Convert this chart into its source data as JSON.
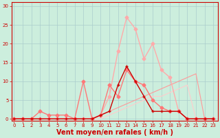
{
  "bg_color": "#cceedd",
  "grid_color": "#aacccc",
  "xlabel": "Vent moyen/en rafales ( km/h )",
  "xlabel_color": "#cc0000",
  "xlabel_fontsize": 7,
  "xticks": [
    0,
    1,
    2,
    3,
    4,
    5,
    6,
    7,
    8,
    9,
    10,
    11,
    12,
    13,
    14,
    15,
    16,
    17,
    18,
    19,
    20,
    21,
    22,
    23
  ],
  "yticks": [
    0,
    5,
    10,
    15,
    20,
    25,
    30
  ],
  "ylim": [
    -0.5,
    31
  ],
  "xlim": [
    -0.3,
    23.5
  ],
  "tick_color": "#cc0000",
  "tick_fontsize": 5.0,
  "line_light_pink_x": [
    0,
    1,
    2,
    3,
    4,
    5,
    6,
    7,
    8,
    9,
    10,
    11,
    12,
    13,
    14,
    15,
    16,
    17,
    18,
    19,
    20,
    21,
    22,
    23
  ],
  "line_light_pink_y": [
    0,
    0,
    0,
    0,
    0,
    0,
    0,
    0,
    0,
    0,
    1,
    6,
    18,
    27,
    24,
    16,
    20,
    13,
    11,
    2,
    0,
    0,
    0,
    0
  ],
  "line_light_pink_color": "#ffaaaa",
  "line_light_pink_lw": 1.0,
  "line_light_pink_marker": "D",
  "line_light_pink_ms": 2.5,
  "line_med_pink_x": [
    0,
    1,
    2,
    3,
    4,
    5,
    6,
    7,
    8,
    9,
    10,
    11,
    12,
    13,
    14,
    15,
    16,
    17,
    18,
    19,
    20,
    21,
    22,
    23
  ],
  "line_med_pink_y": [
    0,
    0,
    0,
    2,
    1,
    1,
    1,
    0,
    10,
    0,
    1,
    9,
    6,
    13,
    10,
    9,
    5,
    3,
    2,
    2,
    0,
    0,
    0,
    0
  ],
  "line_med_pink_color": "#ff7777",
  "line_med_pink_lw": 1.0,
  "line_med_pink_marker": "D",
  "line_med_pink_ms": 2.5,
  "line_dark_red_x": [
    0,
    1,
    2,
    3,
    4,
    5,
    6,
    7,
    8,
    9,
    10,
    11,
    12,
    13,
    14,
    15,
    16,
    17,
    18,
    19,
    20,
    21,
    22,
    23
  ],
  "line_dark_red_y": [
    0,
    0,
    0,
    0,
    0,
    0,
    0,
    0,
    0,
    0,
    1,
    2,
    9,
    14,
    10,
    6,
    2,
    2,
    2,
    2,
    0,
    0,
    0,
    0
  ],
  "line_dark_red_color": "#cc0000",
  "line_dark_red_lw": 1.0,
  "line_dark_red_marker": "+",
  "line_dark_red_ms": 3.5,
  "line_slope1_x": [
    0,
    1,
    2,
    3,
    4,
    5,
    6,
    7,
    8,
    9,
    10,
    11,
    12,
    13,
    14,
    15,
    16,
    17,
    18,
    19,
    20,
    21,
    22,
    23
  ],
  "line_slope1_y": [
    0,
    0,
    0,
    0,
    0,
    0,
    0,
    0,
    0,
    0,
    1,
    2,
    3,
    4,
    5,
    6,
    7,
    8,
    9,
    10,
    11,
    12,
    0,
    0
  ],
  "line_slope1_color": "#ff9999",
  "line_slope1_lw": 0.8,
  "line_slope2_x": [
    0,
    1,
    2,
    3,
    4,
    5,
    6,
    7,
    8,
    9,
    10,
    11,
    12,
    13,
    14,
    15,
    16,
    17,
    18,
    19,
    20,
    21,
    22,
    23
  ],
  "line_slope2_y": [
    0,
    0,
    0,
    0,
    0,
    0,
    0,
    0,
    0,
    0,
    0,
    1,
    2,
    3,
    4,
    5,
    6,
    6,
    7,
    8,
    9,
    0,
    0,
    0
  ],
  "line_slope2_color": "#ffcccc",
  "line_slope2_lw": 0.8
}
